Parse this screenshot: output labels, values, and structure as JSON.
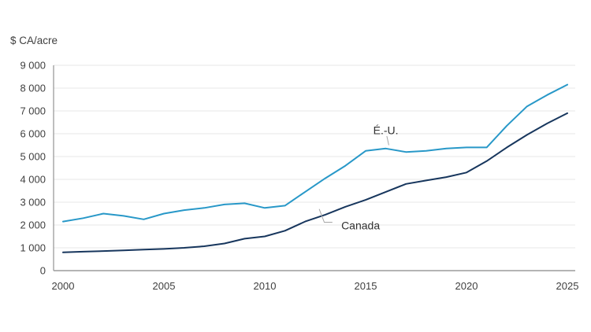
{
  "page": {
    "background": "#ffffff"
  },
  "chart_data": {
    "type": "line",
    "unit_label": "$ CA/acre",
    "x": [
      2000,
      2001,
      2002,
      2003,
      2004,
      2005,
      2006,
      2007,
      2008,
      2009,
      2010,
      2011,
      2012,
      2013,
      2014,
      2015,
      2016,
      2017,
      2018,
      2019,
      2020,
      2021,
      2022,
      2023,
      2024,
      2025
    ],
    "series": [
      {
        "name": "É.-U.",
        "color": "#2898c8",
        "values": [
          2150,
          2300,
          2500,
          2400,
          2250,
          2500,
          2650,
          2750,
          2900,
          2950,
          2750,
          2850,
          3450,
          4050,
          4600,
          5250,
          5350,
          5200,
          5250,
          5350,
          5400,
          5400,
          6350,
          7200,
          7700,
          8150
        ]
      },
      {
        "name": "Canada",
        "color": "#17365d",
        "values": [
          800,
          830,
          860,
          890,
          920,
          950,
          1000,
          1070,
          1190,
          1400,
          1500,
          1750,
          2150,
          2450,
          2800,
          3100,
          3450,
          3800,
          3950,
          4100,
          4300,
          4800,
          5400,
          5950,
          6450,
          6900
        ]
      }
    ],
    "ylim": [
      0,
      9000
    ],
    "ytick_step": 1000,
    "ytick_labels": [
      "0",
      "1 000",
      "2 000",
      "3 000",
      "4 000",
      "5 000",
      "6 000",
      "7 000",
      "8 000",
      "9 000"
    ],
    "xticks": [
      2000,
      2005,
      2010,
      2015,
      2020,
      2025
    ],
    "xtick_labels": [
      "2000",
      "2005",
      "2010",
      "2015",
      "2020",
      "2025"
    ],
    "grid": "horizontal",
    "grid_color": "#e7e7e7",
    "axis_color": "#9b9b9b",
    "tick_label_color": "#3f3f3f",
    "annotation_text_color": "#303030",
    "leader_color": "#a6a6a6",
    "legend": "inline-annotations",
    "annotations": [
      {
        "id": "us-label",
        "text": "É.-U.",
        "year": 2016.0,
        "value": 6150,
        "leader": [
          [
            2016.05,
            5900
          ],
          [
            2016.15,
            5500
          ]
        ]
      },
      {
        "id": "canada-label",
        "text": "Canada",
        "year": 2014.75,
        "value": 1990,
        "leader": [
          [
            2012.7,
            2700
          ],
          [
            2012.95,
            2120
          ],
          [
            2013.35,
            2120
          ]
        ]
      }
    ]
  }
}
